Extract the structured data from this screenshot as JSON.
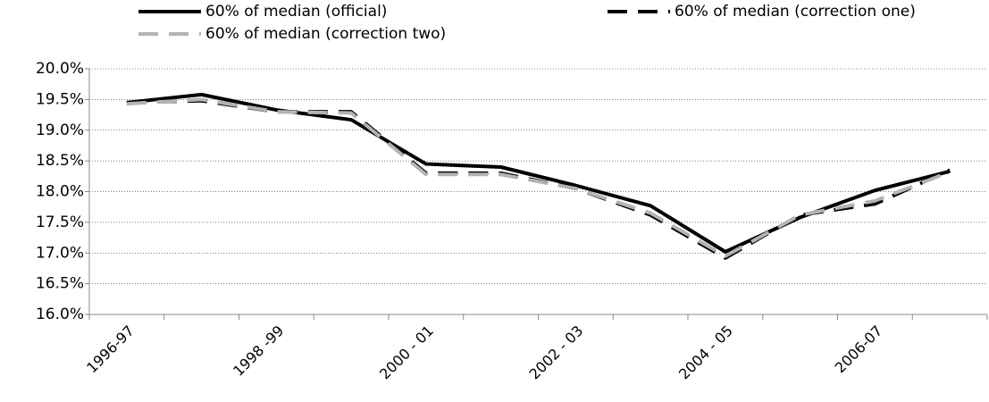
{
  "chart_data": {
    "type": "line",
    "categories": [
      "1996-97",
      null,
      "1998 -99",
      null,
      "2000 - 01",
      null,
      "2002 - 03",
      null,
      "2004 - 05",
      null,
      "2006-07",
      null
    ],
    "series": [
      {
        "name": "60% of median (official)",
        "color": "#000000",
        "dash": "solid",
        "values": [
          19.45,
          19.58,
          19.33,
          19.17,
          18.45,
          18.4,
          18.1,
          17.77,
          17.02,
          17.58,
          18.02,
          18.33
        ]
      },
      {
        "name": "60% of median (correction one)",
        "color": "#000000",
        "dash": "dashed",
        "values": [
          19.45,
          19.48,
          19.3,
          19.3,
          18.3,
          18.3,
          18.05,
          17.62,
          16.92,
          17.62,
          17.8,
          18.35
        ]
      },
      {
        "name": "60% of median (correction two)",
        "color": "#b3b3b3",
        "dash": "dashed",
        "values": [
          19.43,
          19.5,
          19.3,
          19.28,
          18.28,
          18.28,
          18.05,
          17.65,
          16.95,
          17.62,
          17.85,
          18.32
        ]
      }
    ],
    "ylim": [
      16,
      20
    ],
    "yticks": [
      {
        "value": 16,
        "label": "16.0%"
      },
      {
        "value": 16.5,
        "label": "16.5%"
      },
      {
        "value": 17,
        "label": "17.0%"
      },
      {
        "value": 17.5,
        "label": "17.5%"
      },
      {
        "value": 18,
        "label": "18.0%"
      },
      {
        "value": 18.5,
        "label": "18.5%"
      },
      {
        "value": 19,
        "label": "19.0%"
      },
      {
        "value": 19.5,
        "label": "19.5%"
      },
      {
        "value": 20,
        "label": "20.0%"
      }
    ],
    "grid": true
  }
}
